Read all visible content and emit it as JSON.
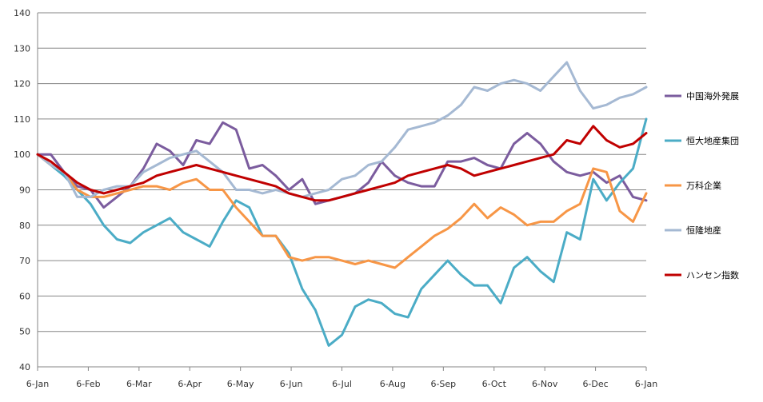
{
  "chart_data": {
    "type": "line",
    "title": "",
    "xlabel": "",
    "ylabel": "",
    "ylim": [
      40,
      140
    ],
    "yticks": [
      40,
      50,
      60,
      70,
      80,
      90,
      100,
      110,
      120,
      130,
      140
    ],
    "xticks": [
      "6-Jan",
      "6-Feb",
      "6-Mar",
      "6-Apr",
      "6-May",
      "6-Jun",
      "6-Jul",
      "6-Aug",
      "6-Sep",
      "6-Oct",
      "6-Nov",
      "6-Dec",
      "6-Jan"
    ],
    "grid": "horizontal",
    "legend_position": "right",
    "series": [
      {
        "name": "中国海外発展",
        "color": "#7B5C9E",
        "values": [
          100,
          100,
          95,
          91,
          90,
          85,
          88,
          91,
          96,
          103,
          101,
          97,
          104,
          103,
          109,
          107,
          96,
          97,
          94,
          90,
          93,
          86,
          87,
          88,
          89,
          92,
          98,
          94,
          92,
          91,
          91,
          98,
          98,
          99,
          97,
          96,
          103,
          106,
          103,
          98,
          95,
          94,
          95,
          92,
          94,
          88,
          87
        ]
      },
      {
        "name": "恒大地産集団",
        "color": "#4BACC6",
        "values": [
          100,
          97,
          94,
          90,
          86,
          80,
          76,
          75,
          78,
          80,
          82,
          78,
          76,
          74,
          81,
          87,
          85,
          77,
          77,
          72,
          62,
          56,
          46,
          49,
          57,
          59,
          58,
          55,
          54,
          62,
          66,
          70,
          66,
          63,
          63,
          58,
          68,
          71,
          67,
          64,
          78,
          76,
          93,
          87,
          92,
          96,
          110
        ]
      },
      {
        "name": "万科企業",
        "color": "#F79646",
        "values": [
          100,
          97,
          95,
          90,
          88,
          88,
          89,
          90,
          91,
          91,
          90,
          92,
          93,
          90,
          90,
          85,
          81,
          77,
          77,
          71,
          70,
          71,
          71,
          70,
          69,
          70,
          69,
          68,
          71,
          74,
          77,
          79,
          82,
          86,
          82,
          85,
          83,
          80,
          81,
          81,
          84,
          86,
          96,
          95,
          84,
          81,
          89
        ]
      },
      {
        "name": "恒隆地産",
        "color": "#A5B9D3",
        "values": [
          100,
          97,
          95,
          88,
          88,
          90,
          91,
          91,
          95,
          97,
          99,
          100,
          101,
          98,
          95,
          90,
          90,
          89,
          90,
          89,
          88,
          89,
          90,
          93,
          94,
          97,
          98,
          102,
          107,
          108,
          109,
          111,
          114,
          119,
          118,
          120,
          121,
          120,
          118,
          122,
          126,
          118,
          113,
          114,
          116,
          117,
          119
        ]
      },
      {
        "name": "ハンセン指数",
        "color": "#C00000",
        "values": [
          100,
          98,
          95,
          92,
          90,
          89,
          90,
          91,
          92,
          94,
          95,
          96,
          97,
          96,
          95,
          94,
          93,
          92,
          91,
          89,
          88,
          87,
          87,
          88,
          89,
          90,
          91,
          92,
          94,
          95,
          96,
          97,
          96,
          94,
          95,
          96,
          97,
          98,
          99,
          100,
          104,
          103,
          108,
          104,
          102,
          103,
          106
        ]
      }
    ]
  }
}
